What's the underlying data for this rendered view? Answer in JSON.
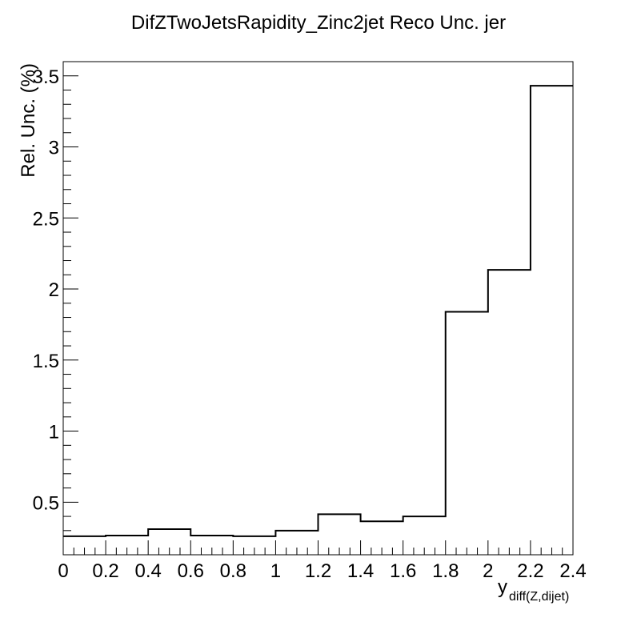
{
  "chart_data": {
    "type": "histogram",
    "title": "DifZTwoJetsRapidity_Zinc2jet Reco Unc. jer",
    "xlabel_main": "y",
    "xlabel_sub": "diff(Z,dijet)",
    "ylabel": "Rel. Unc. (%)",
    "xlim": [
      0,
      2.4
    ],
    "ylim": [
      0.13,
      3.6
    ],
    "x_ticks": [
      "0",
      "0.2",
      "0.4",
      "0.6",
      "0.8",
      "1",
      "1.2",
      "1.4",
      "1.6",
      "1.8",
      "2",
      "2.2",
      "2.4"
    ],
    "y_ticks": [
      "0.5",
      "1",
      "1.5",
      "2",
      "2.5",
      "3",
      "3.5"
    ],
    "bin_edges": [
      0,
      0.2,
      0.4,
      0.6,
      0.8,
      1.0,
      1.2,
      1.4,
      1.6,
      1.8,
      2.0,
      2.2,
      2.4
    ],
    "values": [
      0.26,
      0.265,
      0.31,
      0.265,
      0.26,
      0.3,
      0.415,
      0.365,
      0.4,
      1.84,
      2.135,
      3.43
    ],
    "grid": false,
    "legend": "none"
  }
}
